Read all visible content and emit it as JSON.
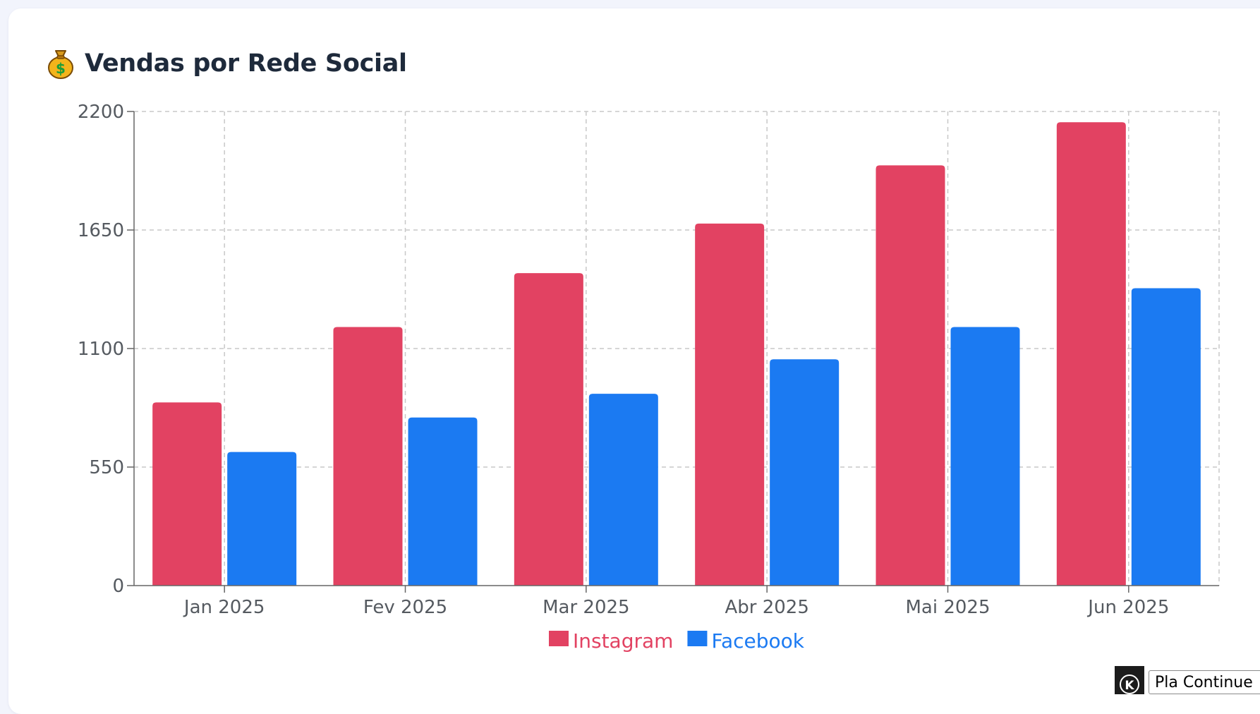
{
  "card": {
    "title": "Vendas por Rede Social",
    "title_icon": "money-bag-icon"
  },
  "colors": {
    "instagram": "#e24262",
    "facebook": "#1b7af2",
    "grid": "#c8c8c8",
    "axis_text": "#555a60"
  },
  "chart_data": {
    "type": "bar",
    "title": "",
    "xlabel": "",
    "ylabel": "",
    "categories": [
      "Jan 2025",
      "Fev 2025",
      "Mar 2025",
      "Abr 2025",
      "Mai 2025",
      "Jun 2025"
    ],
    "series": [
      {
        "name": "Instagram",
        "color": "#e24262",
        "values": [
          850,
          1200,
          1450,
          1680,
          1950,
          2150
        ]
      },
      {
        "name": "Facebook",
        "color": "#1b7af2",
        "values": [
          620,
          780,
          890,
          1050,
          1200,
          1380
        ]
      }
    ],
    "ylim": [
      0,
      2200
    ],
    "yticks": [
      "0",
      "550",
      "1100",
      "1650",
      "2200"
    ],
    "grid": true,
    "legend_position": "bottom-center"
  },
  "corner_widget": {
    "icon": "k-logo-icon",
    "icon_letter": "K",
    "text": "Pla Continue"
  }
}
